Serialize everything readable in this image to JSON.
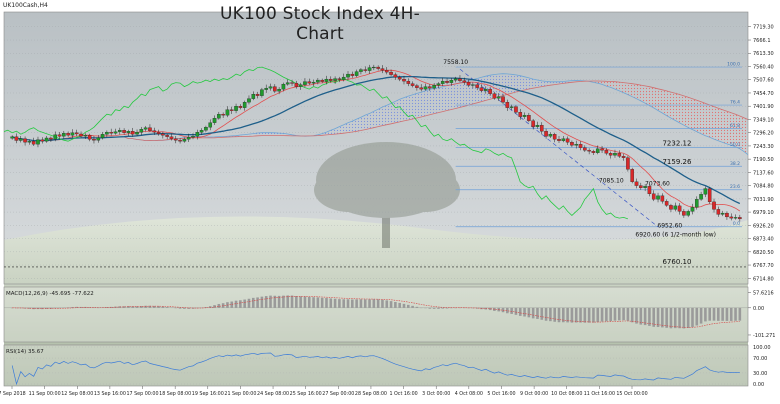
{
  "header": {
    "title": "UK100 Stock Index 4H-Chart",
    "symbol": "UK100Cash,H4"
  },
  "colors": {
    "sky": "#c9cfd2",
    "ground": "#cfd6c6",
    "candle_up": "#1f9a2c",
    "candle_down": "#d8282a",
    "kijun": "#1e5f8a",
    "tenkan": "#e25050",
    "chikou": "#25c940",
    "span_a": "#6ea6d6",
    "span_b": "#d07070",
    "cloud_up": "#8fa6e8",
    "cloud_down": "#f08a8a",
    "fib": "#6fa0d8",
    "trend": "#3a56c6",
    "macd_hist": "#9a9a9a",
    "macd_signal": "#d84040",
    "rsi": "#3c7cd8"
  },
  "chart_data": [
    {
      "type": "candlestick",
      "title": "UK100 Stock Index 4H-Chart",
      "ylim": [
        6700,
        7770
      ],
      "y_ticks": [
        "7719.30",
        "7666.1",
        "7613.30",
        "7560.40",
        "7507.60",
        "7454.70",
        "7401.90",
        "7349.10",
        "7296.20",
        "7243.30",
        "7190.50",
        "7137.60",
        "7084.80",
        "7031.90",
        "6979.10",
        "6926.20",
        "6873.40",
        "6820.50",
        "6767.70",
        "6714.80"
      ],
      "x_ticks": [
        "7 Sep 2018",
        "11 Sep 00:00",
        "12 Sep 08:00",
        "13 Sep 16:00",
        "17 Sep 00:00",
        "18 Sep 08:00",
        "19 Sep 16:00",
        "21 Sep 00:00",
        "24 Sep 08:00",
        "25 Sep 16:00",
        "27 Sep 00:00",
        "28 Sep 08:00",
        "1 Oct 16:00",
        "3 Oct 00:00",
        "4 Oct 08:00",
        "5 Oct 16:00",
        "9 Oct 00:00",
        "10 Oct 08:00",
        "11 Oct 16:00",
        "15 Oct 00:00"
      ],
      "x_count": 170,
      "fib_levels": [
        {
          "label": "100.0",
          "value": 7558.1
        },
        {
          "label": "76.4",
          "value": 7406.5
        },
        {
          "label": "61.8",
          "value": 7312.8
        },
        {
          "label": "50.0",
          "value": 7237.4
        },
        {
          "label": "38.2",
          "value": 7162.0
        },
        {
          "label": "23.6",
          "value": 7068.4
        },
        {
          "label": "0.0",
          "value": 6920.6
        }
      ],
      "annotations": [
        {
          "text": "7558.10",
          "x": 103,
          "y": 7558.1
        },
        {
          "text": "7232.12",
          "x": 158,
          "y": 7232.12
        },
        {
          "text": "7159.26",
          "x": 158,
          "y": 7159.26
        },
        {
          "text": "7085.10",
          "x": 141,
          "y": 7085.1
        },
        {
          "text": "7073.60",
          "x": 148,
          "y": 7073.6
        },
        {
          "text": "6952.60",
          "x": 148,
          "y": 6952.6
        },
        {
          "text": "6920.60 (6 1/2-month low)",
          "x": 148,
          "y": 6920.6
        },
        {
          "text": "6760.10",
          "x": 158,
          "y": 6760.1
        }
      ],
      "series": [
        {
          "kind": "candles",
          "closes": [
            7280,
            7265,
            7272,
            7258,
            7262,
            7250,
            7268,
            7262,
            7275,
            7270,
            7288,
            7282,
            7294,
            7286,
            7296,
            7291,
            7282,
            7286,
            7270,
            7266,
            7276,
            7290,
            7298,
            7294,
            7300,
            7306,
            7296,
            7302,
            7290,
            7298,
            7310,
            7316,
            7304,
            7298,
            7292,
            7286,
            7280,
            7272,
            7266,
            7262,
            7270,
            7278,
            7282,
            7298,
            7306,
            7318,
            7336,
            7354,
            7370,
            7366,
            7388,
            7384,
            7402,
            7396,
            7418,
            7432,
            7450,
            7444,
            7468,
            7474,
            7480,
            7462,
            7470,
            7490,
            7496,
            7494,
            7480,
            7488,
            7500,
            7494,
            7498,
            7506,
            7500,
            7510,
            7504,
            7512,
            7508,
            7518,
            7530,
            7524,
            7540,
            7548,
            7544,
            7556,
            7558,
            7552,
            7546,
            7538,
            7528,
            7518,
            7510,
            7502,
            7492,
            7484,
            7476,
            7470,
            7480,
            7474,
            7486,
            7492,
            7502,
            7496,
            7506,
            7512,
            7504,
            7498,
            7486,
            7488,
            7476,
            7464,
            7470,
            7452,
            7434,
            7440,
            7418,
            7396,
            7400,
            7378,
            7360,
            7366,
            7344,
            7320,
            7326,
            7302,
            7282,
            7290,
            7270,
            7264,
            7272,
            7258,
            7246,
            7250,
            7236,
            7226,
            7222,
            7216,
            7232,
            7226,
            7214,
            7206,
            7214,
            7202,
            7196,
            7150,
            7100,
            7085,
            7076,
            7082,
            7052,
            7030,
            7044,
            7022,
            7006,
            6990,
            7004,
            6982,
            6966,
            6982,
            6998,
            7030,
            7050,
            7073,
            7020,
            6990,
            6970,
            6975,
            6960,
            6955,
            6958,
            6952
          ]
        },
        {
          "kind": "kijun",
          "name": "Kijun"
        },
        {
          "kind": "tenkan",
          "name": "Tenkan"
        },
        {
          "kind": "chikou",
          "name": "Chikou"
        }
      ]
    },
    {
      "type": "bar",
      "title": "MACD(12,26,9) -45.695 -77.622",
      "y_ticks": [
        "57.6216",
        "0.00",
        "-101.271"
      ],
      "ylim": [
        -120,
        70
      ],
      "series": [
        {
          "kind": "histogram"
        },
        {
          "kind": "signal"
        }
      ]
    },
    {
      "type": "line",
      "title": "RSI(14) 35.67",
      "y_ticks": [
        "100.00",
        "70.00",
        "30.00",
        "0.00"
      ],
      "ylim": [
        0,
        100
      ],
      "series": [
        {
          "kind": "rsi"
        }
      ]
    }
  ]
}
